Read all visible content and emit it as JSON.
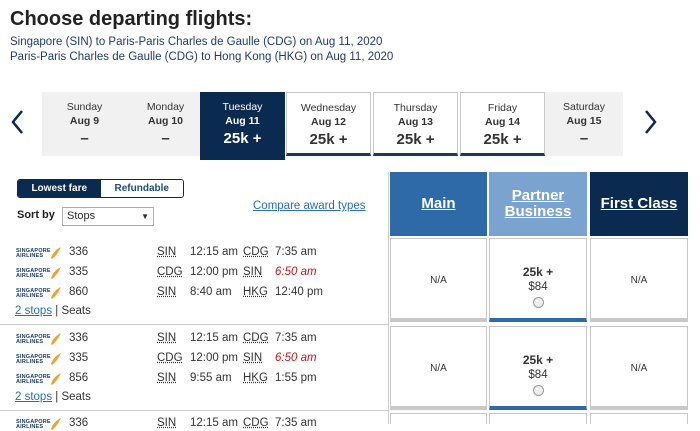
{
  "page_title": "Choose departing flights:",
  "routes": [
    "Singapore (SIN) to Paris-Paris Charles de Gaulle (CDG) on Aug 11, 2020",
    "Paris-Paris Charles de Gaulle (CDG) to Hong Kong (HKG) on Aug 11, 2020"
  ],
  "dates": [
    {
      "day": "Sunday",
      "date": "Aug 9",
      "fare": "–"
    },
    {
      "day": "Monday",
      "date": "Aug 10",
      "fare": "–"
    },
    {
      "day": "Tuesday",
      "date": "Aug 11",
      "fare": "25k +"
    },
    {
      "day": "Wednesday",
      "date": "Aug 12",
      "fare": "25k +"
    },
    {
      "day": "Thursday",
      "date": "Aug 13",
      "fare": "25k +"
    },
    {
      "day": "Friday",
      "date": "Aug 14",
      "fare": "25k +"
    },
    {
      "day": "Saturday",
      "date": "Aug 15",
      "fare": "–"
    }
  ],
  "tabs": {
    "lowest": "Lowest fare",
    "refundable": "Refundable"
  },
  "sort": {
    "label": "Sort by",
    "value": "Stops"
  },
  "compare_link": "Compare award types",
  "cabins": {
    "main": "Main",
    "partner_business": "Partner Business",
    "first": "First Class"
  },
  "airline_logo_text": [
    "SINGAPORE",
    "AIRLINES"
  ],
  "itineraries": [
    {
      "segments": [
        {
          "flight": "336",
          "from": "SIN",
          "dep": "12:15 am",
          "to": "CDG",
          "arr": "7:35 am"
        },
        {
          "flight": "335",
          "from": "CDG",
          "dep": "12:00 pm",
          "to": "SIN",
          "arr": "6:50 am"
        },
        {
          "flight": "860",
          "from": "SIN",
          "dep": "8:40 am",
          "to": "HKG",
          "arr": "12:40 pm"
        }
      ],
      "stops": "2 stops",
      "seats": "Seats",
      "main": "N/A",
      "partner_points": "25k +",
      "partner_tax": "$84",
      "first": "N/A"
    },
    {
      "segments": [
        {
          "flight": "336",
          "from": "SIN",
          "dep": "12:15 am",
          "to": "CDG",
          "arr": "7:35 am"
        },
        {
          "flight": "335",
          "from": "CDG",
          "dep": "12:00 pm",
          "to": "SIN",
          "arr": "6:50 am"
        },
        {
          "flight": "856",
          "from": "SIN",
          "dep": "9:55 am",
          "to": "HKG",
          "arr": "1:55 pm"
        }
      ],
      "stops": "2 stops",
      "seats": "Seats",
      "main": "N/A",
      "partner_points": "25k +",
      "partner_tax": "$84",
      "first": "N/A"
    },
    {
      "segments": [
        {
          "flight": "336",
          "from": "SIN",
          "dep": "12:15 am",
          "to": "CDG",
          "arr": "7:35 am"
        }
      ]
    }
  ],
  "colors": {
    "navy": "#0b2a4f",
    "main_blue": "#2f6aa8",
    "partner_blue": "#7ba3cf",
    "link": "#2a6eb5",
    "late_arrival": "#b01e1e"
  }
}
